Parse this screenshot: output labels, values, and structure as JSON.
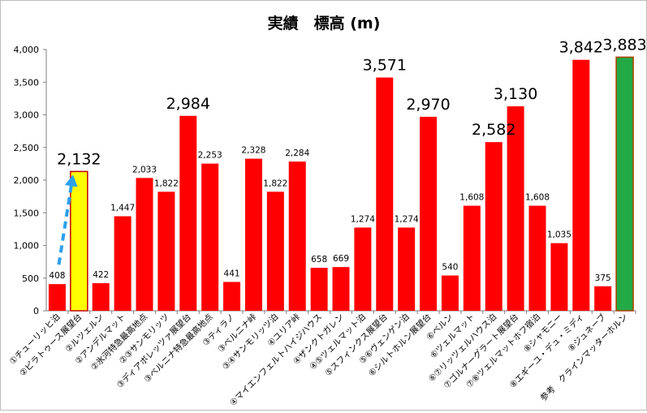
{
  "chart_data": {
    "type": "bar",
    "title": "実績　標高 (m)",
    "xlabel": "",
    "ylabel": "",
    "ylim": [
      0,
      4000
    ],
    "yticks": [
      "0",
      "500",
      "1,000",
      "1,500",
      "2,000",
      "2,500",
      "3,000",
      "3,500",
      "4,000"
    ],
    "grid": false,
    "legend": "none",
    "categories": [
      "①チューリッヒ泊",
      "②ピラトゥース展望台",
      "②ルツェルン",
      "②アンデルマット",
      "②氷河特急最高地点",
      "②③サンモリッツ",
      "③ディアボレッツァ展望台",
      "③ベルニナ特急最高地点",
      "③ティラノ",
      "③ベルニナ峠",
      "③④サンモリッツ泊",
      "④ユリア峠",
      "④マイエンフェルトハイジハウス",
      "④ザンクトガレン",
      "④⑤ツェルマット泊",
      "⑤スフィンクス展望台",
      "⑤⑥ヴェンゲン泊",
      "⑥シルトホルン展望台",
      "⑥ベルン",
      "⑥ツェルマット",
      "⑥⑦リッツェルハウス泊",
      "⑦ゴルナーグラート展望台",
      "⑦⑧ツェルマットホフ宿泊",
      "⑧シャモニー",
      "⑧エギーユ・デュ・ミディ",
      "⑧ジュネーブ",
      "参考　クラインマッターホルン"
    ],
    "values": [
      408,
      2132,
      422,
      1447,
      2033,
      1822,
      2984,
      2253,
      441,
      2328,
      1822,
      2284,
      658,
      669,
      1274,
      3571,
      1274,
      2970,
      540,
      1608,
      2582,
      3130,
      1608,
      1035,
      3842,
      375,
      3883
    ],
    "data_labels": [
      "408",
      "2,132",
      "422",
      "1,447",
      "2,033",
      "1,822",
      "2,984",
      "2,253",
      "441",
      "2,328",
      "1,822",
      "2,284",
      "658",
      "669",
      "1,274",
      "3,571",
      "1,274",
      "2,970",
      "540",
      "1,608",
      "2,582",
      "3,130",
      "1,608",
      "1,035",
      "3,842",
      "375",
      "3,883"
    ],
    "large_label_indices": [
      1,
      6,
      15,
      17,
      20,
      21,
      24,
      26
    ],
    "bar_colors": [
      "#ff0000",
      "#ffff00",
      "#ff0000",
      "#ff0000",
      "#ff0000",
      "#ff0000",
      "#ff0000",
      "#ff0000",
      "#ff0000",
      "#ff0000",
      "#ff0000",
      "#ff0000",
      "#ff0000",
      "#ff0000",
      "#ff0000",
      "#ff0000",
      "#ff0000",
      "#ff0000",
      "#ff0000",
      "#ff0000",
      "#ff0000",
      "#ff0000",
      "#ff0000",
      "#ff0000",
      "#ff0000",
      "#ff0000",
      "#22aa44"
    ],
    "highlight_arrow_color": "#2b9ff0"
  }
}
